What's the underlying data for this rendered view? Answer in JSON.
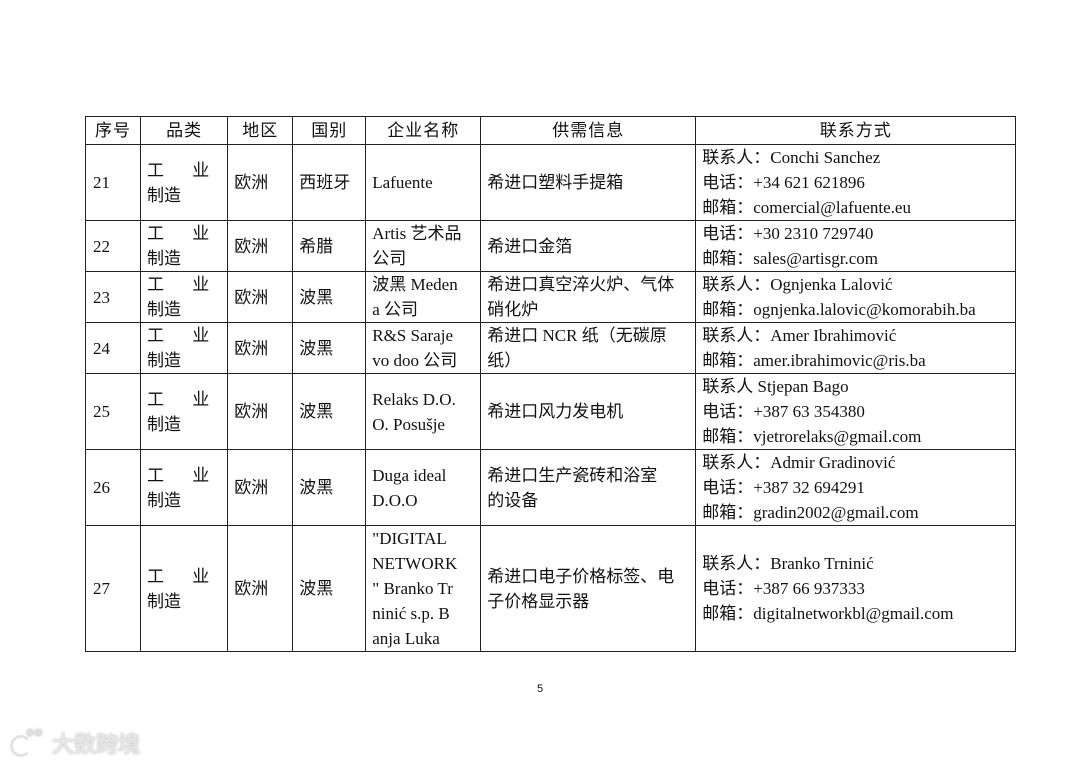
{
  "table": {
    "headers": [
      "序号",
      "品类",
      "地区",
      "国别",
      "企业名称",
      "供需信息",
      "联系方式"
    ],
    "rows": [
      {
        "seq": "21",
        "category": [
          "工 业",
          "制造"
        ],
        "region": "欧洲",
        "country": "西班牙",
        "company": [
          "Lafuente"
        ],
        "supply": [
          "希进口塑料手提箱"
        ],
        "contact": [
          "联系人：Conchi  Sanchez",
          "电话：+34  621  621896",
          "邮箱：comercial@lafuente.eu"
        ]
      },
      {
        "seq": "22",
        "category": [
          "工 业",
          "制造"
        ],
        "region": "欧洲",
        "country": "希腊",
        "company": [
          "Artis 艺术品",
          "公司"
        ],
        "supply": [
          "希进口金箔"
        ],
        "contact": [
          "电话：+30  2310  729740",
          "邮箱：sales@artisgr.com"
        ]
      },
      {
        "seq": "23",
        "category": [
          "工 业",
          "制造"
        ],
        "region": "欧洲",
        "country": "波黑",
        "company": [
          "波黑 Meden",
          "a 公司"
        ],
        "supply": [
          "希进口真空淬火炉、气体",
          "硝化炉"
        ],
        "contact": [
          "联系人：Ognjenka  Lalović",
          "邮箱：ognjenka.lalovic@komorabih.ba"
        ]
      },
      {
        "seq": "24",
        "category": [
          "工 业",
          "制造"
        ],
        "region": "欧洲",
        "country": "波黑",
        "company": [
          "R&S  Saraje",
          "vo  doo 公司"
        ],
        "supply": [
          "希进口 NCR 纸（无碳原",
          "纸）"
        ],
        "contact": [
          "联系人：Amer  Ibrahimović",
          "邮箱：amer.ibrahimovic@ris.ba"
        ]
      },
      {
        "seq": "25",
        "category": [
          "工 业",
          "制造"
        ],
        "region": "欧洲",
        "country": "波黑",
        "company": [
          "Relaks  D.O.",
          "O.  Posušje"
        ],
        "supply": [
          "希进口风力发电机"
        ],
        "contact": [
          "联系人 Stjepan  Bago",
          "电话：+387  63  354380",
          "邮箱：vjetrorelaks@gmail.com"
        ]
      },
      {
        "seq": "26",
        "category": [
          "工 业",
          "制造"
        ],
        "region": "欧洲",
        "country": "波黑",
        "company": [
          "Duga  ideal",
          "D.O.O"
        ],
        "supply": [
          "希进口生产瓷砖和浴室",
          "的设备"
        ],
        "contact": [
          "联系人：Admir  Gradinović",
          "电话：+387  32  694291",
          "邮箱：gradin2002@gmail.com"
        ]
      },
      {
        "seq": "27",
        "category": [
          "工 业",
          "制造"
        ],
        "region": "欧洲",
        "country": "波黑",
        "company": [
          "\"DIGITAL",
          "NETWORK",
          "\"  Branko  Tr",
          "ninić  s.p.  B",
          "anja  Luka"
        ],
        "supply": [
          "希进口电子价格标签、电",
          "子价格显示器"
        ],
        "contact": [
          "联系人：Branko  Trninić",
          "电话：+387  66  937333",
          "邮箱：digitalnetworkbl@gmail.com"
        ]
      }
    ]
  },
  "footer": {
    "page_number": "5"
  },
  "watermark": {
    "text": "大数跨境"
  }
}
